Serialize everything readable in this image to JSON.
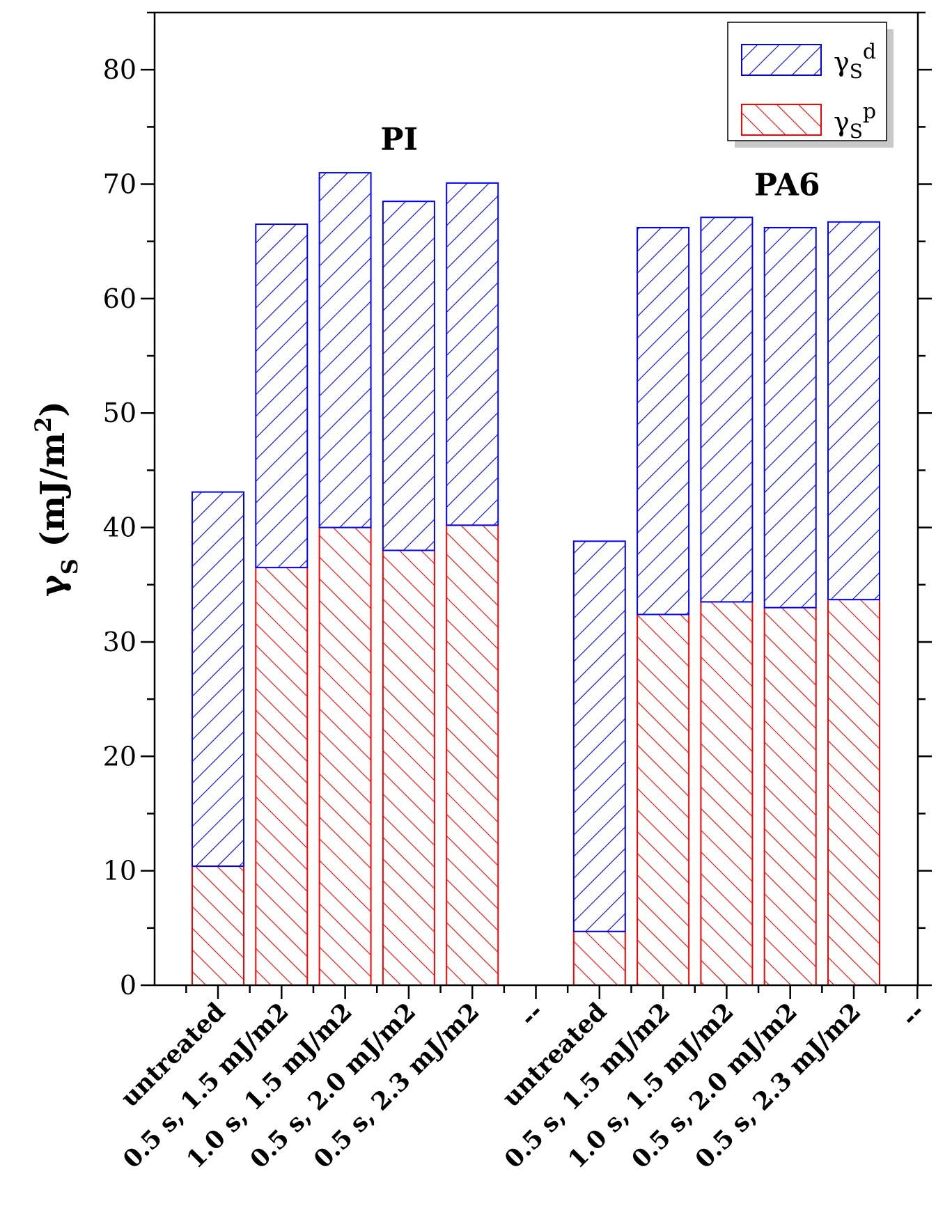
{
  "chart_data": {
    "type": "bar",
    "stacked": true,
    "title": "",
    "xlabel": "",
    "ylabel": {
      "main": "γ",
      "sub": "S",
      "unit": " (mJ/m",
      "sup": "2",
      "close": ")"
    },
    "ylim": [
      0,
      85
    ],
    "yticks": [
      0,
      10,
      20,
      30,
      40,
      50,
      60,
      70,
      80
    ],
    "categories": [
      "untreated",
      "0.5 s, 1.5 mJ/m2",
      "1.0 s, 1.5 mJ/m2",
      "0.5 s, 2.0 mJ/m2",
      "0.5 s, 2.3 mJ/m2",
      "--",
      "untreated",
      "0.5 s, 1.5 mJ/m2",
      "1.0 s, 1.5 mJ/m2",
      "0.5 s, 2.0 mJ/m2",
      "0.5 s, 2.3 mJ/m2",
      "--"
    ],
    "groups": [
      {
        "label": "PI",
        "label_value": 74
      },
      {
        "label": "PA6",
        "label_value": 70
      }
    ],
    "series": [
      {
        "name": "γSp",
        "legend": {
          "main": "γ",
          "sub": "S",
          "sup": "p"
        },
        "color": "#ff0000",
        "hatch": "backslash",
        "values": [
          10.4,
          36.5,
          40.0,
          38.0,
          40.2,
          null,
          4.7,
          32.4,
          33.5,
          33.0,
          33.7,
          null
        ]
      },
      {
        "name": "γSd",
        "legend": {
          "main": "γ",
          "sub": "S",
          "sup": "d"
        },
        "color": "#0000ff",
        "hatch": "slash",
        "values": [
          32.7,
          30.0,
          31.0,
          30.5,
          29.9,
          null,
          34.1,
          33.8,
          33.6,
          33.2,
          33.0,
          null
        ]
      }
    ],
    "legend_position": "top-right",
    "grid": false
  }
}
